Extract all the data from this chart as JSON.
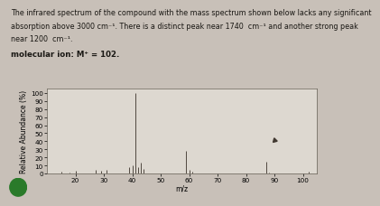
{
  "xlabel": "m/z",
  "ylabel": "Relative Abundance (%)",
  "xlim": [
    10,
    105
  ],
  "ylim": [
    0,
    105
  ],
  "xticks": [
    20,
    30,
    40,
    50,
    60,
    70,
    80,
    90,
    100
  ],
  "yticks": [
    0,
    10,
    20,
    30,
    40,
    50,
    60,
    70,
    80,
    90,
    100
  ],
  "background_color": "#c8c0b8",
  "plot_bg_color": "#ddd8d0",
  "peaks": [
    {
      "mz": 15,
      "rel": 3
    },
    {
      "mz": 18,
      "rel": 2
    },
    {
      "mz": 20,
      "rel": 4
    },
    {
      "mz": 27,
      "rel": 5
    },
    {
      "mz": 29,
      "rel": 4
    },
    {
      "mz": 31,
      "rel": 5
    },
    {
      "mz": 39,
      "rel": 8
    },
    {
      "mz": 40,
      "rel": 10
    },
    {
      "mz": 41,
      "rel": 100
    },
    {
      "mz": 42,
      "rel": 8
    },
    {
      "mz": 43,
      "rel": 14
    },
    {
      "mz": 44,
      "rel": 6
    },
    {
      "mz": 59,
      "rel": 28
    },
    {
      "mz": 60,
      "rel": 5
    },
    {
      "mz": 61,
      "rel": 3
    },
    {
      "mz": 87,
      "rel": 15
    },
    {
      "mz": 88,
      "rel": 2
    },
    {
      "mz": 102,
      "rel": 3
    }
  ],
  "peak_color": "#504840",
  "title_fontsize": 5.8,
  "mol_fontsize": 6.2,
  "axis_label_fontsize": 5.5,
  "tick_fontsize": 5.2,
  "line1": "The infrared spectrum of the compound with the mass spectrum shown below lacks any significant",
  "line2": "absorption above 3000 cm⁻¹. There is a distinct peak near 1740  cm⁻¹ and another strong peak",
  "line3": "near 1200  cm⁻¹.",
  "mol_line": "molecular ion: M⁺ = 102.",
  "cursor_mz": 90,
  "cursor_rel": 42,
  "circle_color": "#2a7a2a"
}
